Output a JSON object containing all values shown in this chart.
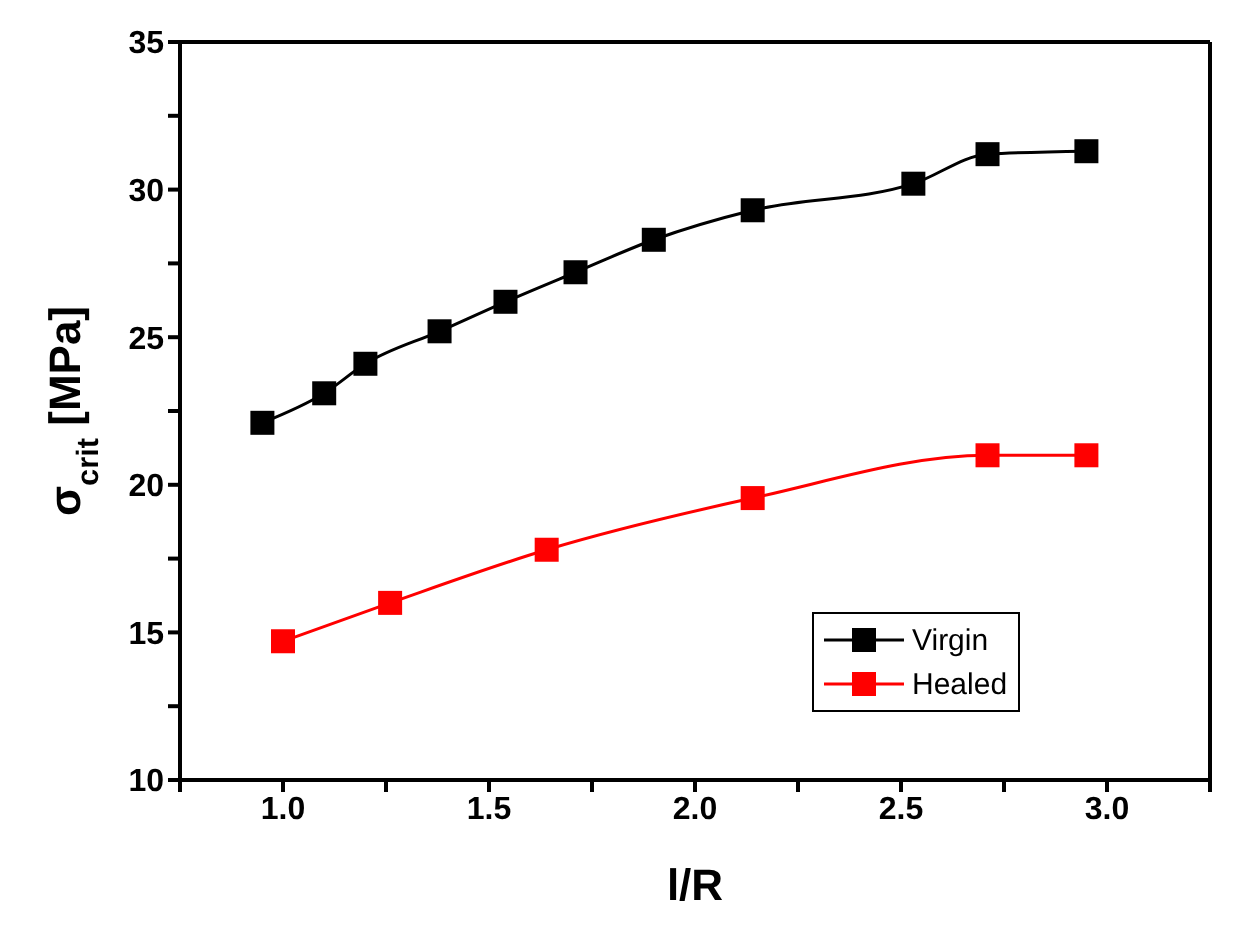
{
  "chart_data": {
    "type": "line",
    "xlabel": "l/R",
    "ylabel": "σ$_{crit}$ [MPa]",
    "xlim": [
      0.75,
      3.25
    ],
    "xticks": [
      {
        "value": 0.75,
        "label": null
      },
      {
        "value": 1,
        "label": "1.0"
      },
      {
        "value": 1.25,
        "label": null
      },
      1.5,
      {
        "value": 1.75,
        "label": null
      },
      {
        "value": 2,
        "label": "2.0"
      },
      {
        "value": 2.25,
        "label": null
      },
      2.5,
      {
        "value": 2.75,
        "label": null
      },
      {
        "value": 3,
        "label": "3.0"
      },
      {
        "value": 3.25,
        "label": null
      }
    ],
    "ylim": [
      10,
      35
    ],
    "yticks": [
      10,
      {
        "value": 12.5,
        "label": null
      },
      15,
      {
        "value": 17.5,
        "label": null
      },
      20,
      {
        "value": 22.5,
        "label": null
      },
      25,
      {
        "value": 27.5,
        "label": null
      },
      30,
      {
        "value": 32.5,
        "label": null
      },
      35
    ],
    "legend": "bottom right",
    "marker": "square",
    "line_style": "solid",
    "series": [
      {
        "name": "Virgin",
        "color": "#000000",
        "x": [
          0.95,
          1.1,
          1.2,
          1.38,
          1.54,
          1.71,
          1.9,
          2.14,
          2.53,
          2.71,
          2.95
        ],
        "values": [
          22.1,
          23.1,
          24.1,
          25.2,
          26.2,
          27.2,
          28.3,
          29.3,
          30.2,
          31.2,
          31.3
        ]
      },
      {
        "name": "Healed",
        "color": "#ff0000",
        "x": [
          1.0,
          1.26,
          1.64,
          2.14,
          2.71,
          2.95
        ],
        "values": [
          14.7,
          16.0,
          17.8,
          19.55,
          21.0,
          21.0
        ]
      }
    ]
  }
}
